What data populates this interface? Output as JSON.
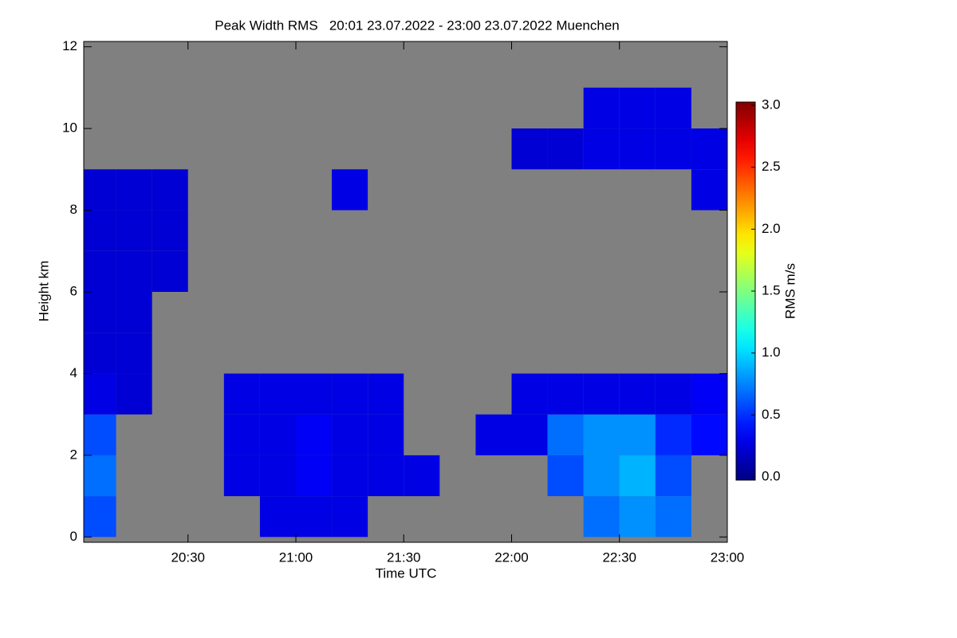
{
  "chart_data": {
    "type": "heatmap",
    "title": "Peak Width RMS   20:01 23.07.2022 - 23:00 23.07.2022 Muenchen",
    "xlabel": "Time UTC",
    "ylabel": "Height km",
    "colorbar_label": "RMS m/s",
    "colormap": "jet",
    "nodata_color": "#808080",
    "xlim": [
      1201,
      1380
    ],
    "ylim": [
      -0.13,
      12.13
    ],
    "clim": [
      0,
      3
    ],
    "xticks": [
      {
        "value": 1230,
        "label": "20:30"
      },
      {
        "value": 1260,
        "label": "21:00"
      },
      {
        "value": 1290,
        "label": "21:30"
      },
      {
        "value": 1320,
        "label": "22:00"
      },
      {
        "value": 1350,
        "label": "22:30"
      },
      {
        "value": 1380,
        "label": "23:00"
      }
    ],
    "yticks": [
      0,
      2,
      4,
      6,
      8,
      10,
      12
    ],
    "cticks": [
      {
        "value": 0,
        "label": "0.0"
      },
      {
        "value": 0.5,
        "label": "0.5"
      },
      {
        "value": 1,
        "label": "1.0"
      },
      {
        "value": 1.5,
        "label": "1.5"
      },
      {
        "value": 2,
        "label": "2.0"
      },
      {
        "value": 2.5,
        "label": "2.5"
      },
      {
        "value": 3,
        "label": "3.0"
      }
    ],
    "x": [
      1201,
      1210,
      1220,
      1230,
      1240,
      1250,
      1260,
      1270,
      1280,
      1290,
      1300,
      1310,
      1320,
      1330,
      1340,
      1350,
      1360,
      1370,
      1380
    ],
    "y": [
      0,
      1,
      2,
      3,
      4,
      5,
      6,
      7,
      8,
      9,
      10,
      11,
      12
    ],
    "z": [
      [
        0.6,
        null,
        null,
        null,
        null,
        0.3,
        0.3,
        0.3,
        null,
        null,
        null,
        null,
        null,
        null,
        0.7,
        0.8,
        0.7,
        null
      ],
      [
        0.7,
        null,
        null,
        null,
        0.3,
        0.3,
        0.35,
        0.3,
        0.3,
        0.3,
        null,
        null,
        null,
        0.6,
        0.8,
        0.9,
        0.6,
        null
      ],
      [
        0.6,
        null,
        null,
        null,
        0.3,
        0.3,
        0.35,
        0.3,
        0.3,
        null,
        null,
        0.3,
        0.3,
        0.7,
        0.8,
        0.8,
        0.5,
        0.4
      ],
      [
        0.3,
        0.25,
        null,
        null,
        0.3,
        0.3,
        0.3,
        0.3,
        0.3,
        null,
        null,
        null,
        0.3,
        0.3,
        0.3,
        0.3,
        0.3,
        0.35
      ],
      [
        0.25,
        0.25,
        null,
        null,
        null,
        null,
        null,
        null,
        null,
        null,
        null,
        null,
        null,
        null,
        null,
        null,
        null,
        null
      ],
      [
        0.25,
        0.25,
        null,
        null,
        null,
        null,
        null,
        null,
        null,
        null,
        null,
        null,
        null,
        null,
        null,
        null,
        null,
        null
      ],
      [
        0.25,
        0.25,
        0.25,
        null,
        null,
        null,
        null,
        null,
        null,
        null,
        null,
        null,
        null,
        null,
        null,
        null,
        null,
        null
      ],
      [
        0.25,
        0.25,
        0.25,
        null,
        null,
        null,
        null,
        null,
        null,
        null,
        null,
        null,
        null,
        null,
        null,
        null,
        null,
        null
      ],
      [
        0.25,
        0.25,
        0.25,
        null,
        null,
        null,
        null,
        0.3,
        null,
        null,
        null,
        null,
        null,
        null,
        null,
        null,
        null,
        0.3
      ],
      [
        null,
        null,
        null,
        null,
        null,
        null,
        null,
        null,
        null,
        null,
        null,
        null,
        0.25,
        0.25,
        0.3,
        0.3,
        0.3,
        0.3
      ],
      [
        null,
        null,
        null,
        null,
        null,
        null,
        null,
        null,
        null,
        null,
        null,
        null,
        null,
        null,
        0.3,
        0.3,
        0.3,
        null
      ],
      [
        null,
        null,
        null,
        null,
        null,
        null,
        null,
        null,
        null,
        null,
        null,
        null,
        null,
        null,
        null,
        null,
        null,
        null
      ]
    ]
  }
}
